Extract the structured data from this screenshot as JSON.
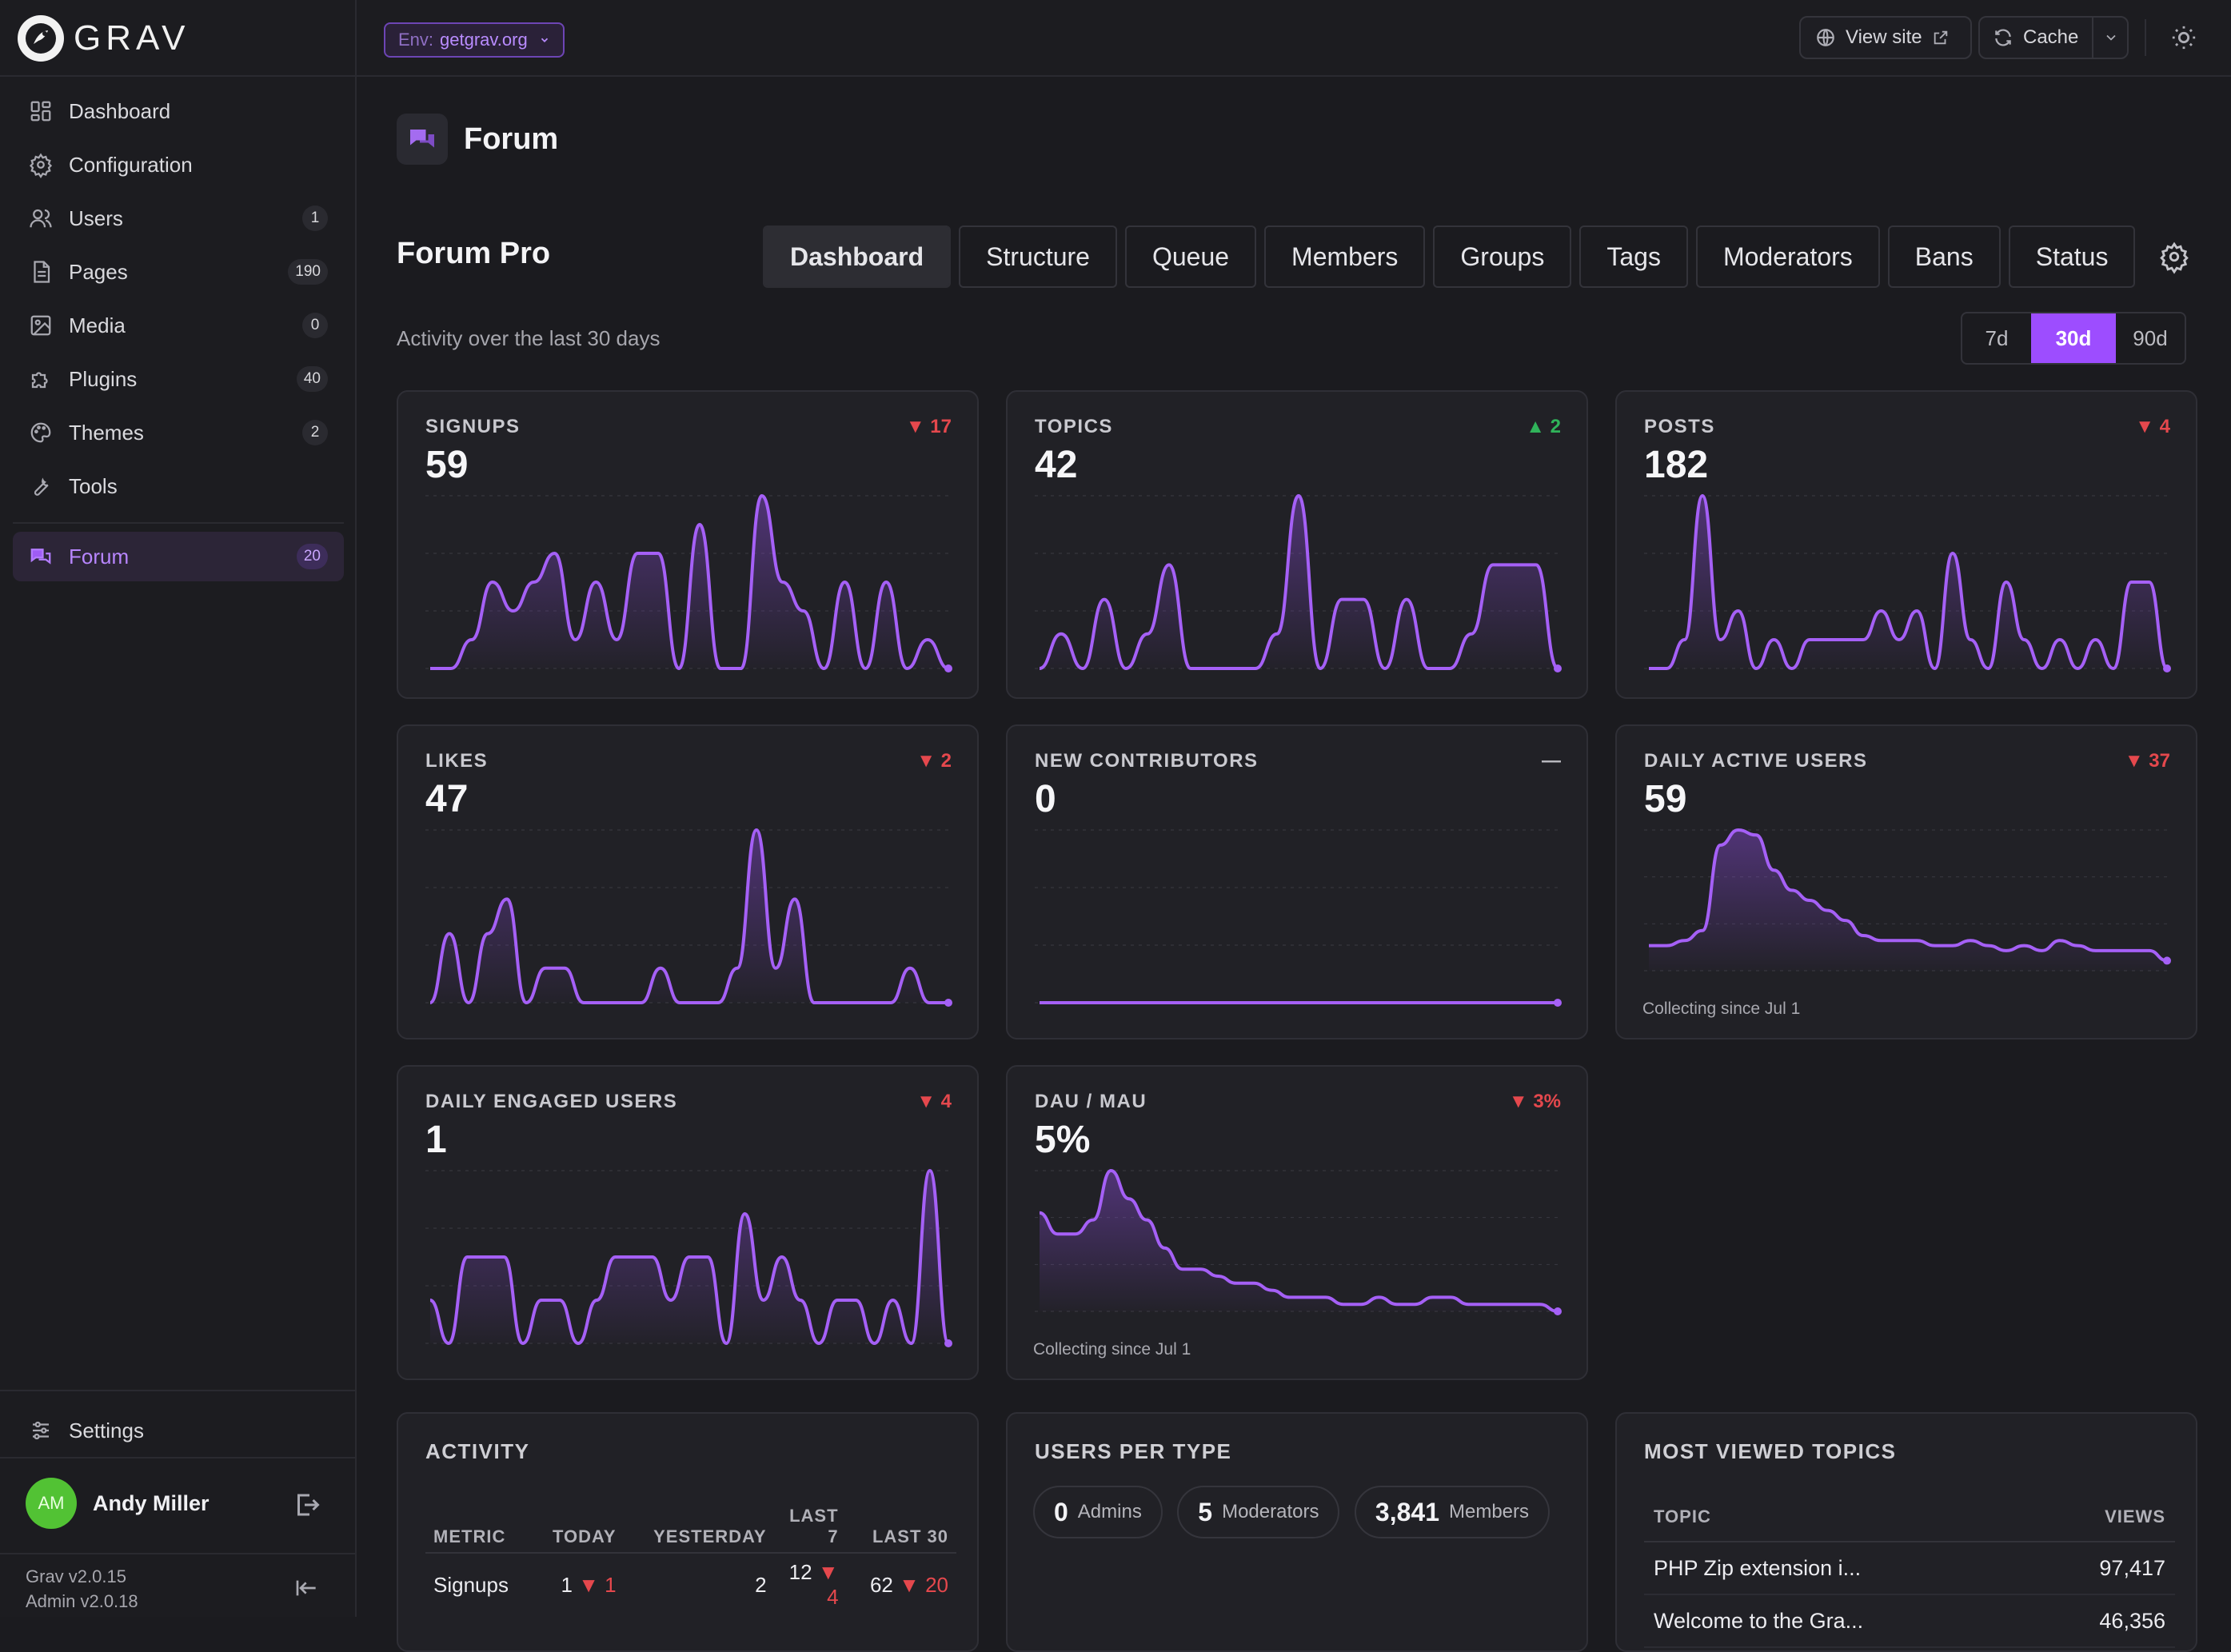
{
  "brand": {
    "name": "GRAV"
  },
  "sidebar": {
    "items": [
      {
        "label": "Dashboard",
        "icon": "dashboard-icon",
        "badge": ""
      },
      {
        "label": "Configuration",
        "icon": "gear-icon",
        "badge": ""
      },
      {
        "label": "Users",
        "icon": "users-icon",
        "badge": "1"
      },
      {
        "label": "Pages",
        "icon": "pages-icon",
        "badge": "190"
      },
      {
        "label": "Media",
        "icon": "media-icon",
        "badge": "0"
      },
      {
        "label": "Plugins",
        "icon": "puzzle-icon",
        "badge": "40"
      },
      {
        "label": "Themes",
        "icon": "palette-icon",
        "badge": "2"
      },
      {
        "label": "Tools",
        "icon": "wrench-icon",
        "badge": ""
      }
    ],
    "active_item": {
      "label": "Forum",
      "icon": "forum-icon",
      "badge": "20"
    },
    "settings_label": "Settings",
    "user": {
      "initials": "AM",
      "name": "Andy Miller"
    },
    "version_line1": "Grav v2.0.15",
    "version_line2": "Admin v2.0.18"
  },
  "topbar": {
    "env_label": "Env:",
    "env_value": "getgrav.org",
    "view_site": "View site",
    "cache": "Cache"
  },
  "page": {
    "title": "Forum"
  },
  "forum": {
    "title": "Forum Pro",
    "tabs": [
      "Dashboard",
      "Structure",
      "Queue",
      "Members",
      "Groups",
      "Tags",
      "Moderators",
      "Bans",
      "Status"
    ],
    "active_tab": "Dashboard",
    "subtitle": "Activity over the last 30 days",
    "ranges": [
      "7d",
      "30d",
      "90d"
    ],
    "active_range": "30d"
  },
  "stats": [
    {
      "label": "SIGNUPS",
      "value": "59",
      "delta": "▼ 17",
      "trend": "down",
      "note": ""
    },
    {
      "label": "TOPICS",
      "value": "42",
      "delta": "▲ 2",
      "trend": "up",
      "note": ""
    },
    {
      "label": "POSTS",
      "value": "182",
      "delta": "▼ 4",
      "trend": "down",
      "note": ""
    },
    {
      "label": "LIKES",
      "value": "47",
      "delta": "▼ 2",
      "trend": "down",
      "note": ""
    },
    {
      "label": "NEW CONTRIBUTORS",
      "value": "0",
      "delta": "—",
      "trend": "flat",
      "note": ""
    },
    {
      "label": "DAILY ACTIVE USERS",
      "value": "59",
      "delta": "▼ 37",
      "trend": "down",
      "note": "Collecting since Jul 1"
    },
    {
      "label": "DAILY ENGAGED USERS",
      "value": "1",
      "delta": "▼ 4",
      "trend": "down",
      "note": ""
    },
    {
      "label": "DAU / MAU",
      "value": "5%",
      "delta": "▼ 3%",
      "trend": "down",
      "note": "Collecting since Jul 1"
    }
  ],
  "activity": {
    "title": "ACTIVITY",
    "headers": [
      "METRIC",
      "TODAY",
      "YESTERDAY",
      "LAST 7",
      "LAST 30"
    ],
    "rows": [
      {
        "metric": "Signups",
        "today": "1",
        "today_delta": "▼ 1",
        "yesterday": "2",
        "last7": "12",
        "last7_delta": "▼ 4",
        "last30": "62",
        "last30_delta": "▼ 20"
      }
    ]
  },
  "users_per_type": {
    "title": "USERS PER TYPE",
    "chips": [
      {
        "count": "0",
        "label": "Admins"
      },
      {
        "count": "5",
        "label": "Moderators"
      },
      {
        "count": "3,841",
        "label": "Members"
      }
    ]
  },
  "most_viewed": {
    "title": "MOST VIEWED TOPICS",
    "headers": [
      "TOPIC",
      "VIEWS"
    ],
    "rows": [
      {
        "topic": "PHP Zip extension i...",
        "views": "97,417"
      },
      {
        "topic": "Welcome to the Gra...",
        "views": "46,356"
      }
    ]
  },
  "colors": {
    "accent": "#9d4dff",
    "down": "#e5484d",
    "up": "#30b35a",
    "line": "#a560f6"
  },
  "chart_data": [
    {
      "type": "area",
      "title": "SIGNUPS",
      "values": [
        0,
        0,
        1,
        3,
        2,
        3,
        4,
        1,
        3,
        1,
        4,
        4,
        0,
        5,
        0,
        0,
        6,
        3,
        2,
        0,
        3,
        0,
        3,
        0,
        1,
        0
      ]
    },
    {
      "type": "area",
      "title": "TOPICS",
      "values": [
        0,
        1,
        0,
        2,
        0,
        1,
        3,
        0,
        0,
        0,
        0,
        1,
        5,
        0,
        2,
        2,
        0,
        2,
        0,
        0,
        1,
        3,
        3,
        3,
        0
      ]
    },
    {
      "type": "area",
      "title": "POSTS",
      "values": [
        0,
        0,
        1,
        6,
        1,
        2,
        0,
        1,
        0,
        1,
        1,
        1,
        1,
        2,
        1,
        2,
        0,
        4,
        1,
        0,
        3,
        1,
        0,
        1,
        0,
        1,
        0,
        3,
        3,
        0
      ]
    },
    {
      "type": "area",
      "title": "LIKES",
      "values": [
        0,
        2,
        0,
        2,
        3,
        0,
        1,
        1,
        0,
        0,
        0,
        0,
        1,
        0,
        0,
        0,
        1,
        5,
        1,
        3,
        0,
        0,
        0,
        0,
        0,
        1,
        0,
        0
      ]
    },
    {
      "type": "line",
      "title": "NEW CONTRIBUTORS",
      "values": [
        0,
        0,
        0,
        0,
        0,
        0,
        0,
        0,
        0,
        0,
        0,
        0,
        0,
        0,
        0,
        0,
        0,
        0,
        0,
        0,
        0,
        0,
        0,
        0,
        0,
        0,
        0,
        0,
        0,
        0
      ]
    },
    {
      "type": "area",
      "title": "DAILY ACTIVE USERS",
      "values": [
        5,
        5,
        6,
        8,
        25,
        28,
        27,
        20,
        16,
        14,
        12,
        10,
        7,
        6,
        6,
        6,
        5,
        5,
        6,
        5,
        4,
        5,
        4,
        6,
        5,
        4,
        4,
        4,
        4,
        2
      ]
    },
    {
      "type": "area",
      "title": "DAILY ENGAGED USERS",
      "values": [
        1,
        0,
        2,
        2,
        2,
        0,
        1,
        1,
        0,
        1,
        2,
        2,
        2,
        1,
        2,
        2,
        0,
        3,
        1,
        2,
        1,
        0,
        1,
        1,
        0,
        1,
        0,
        4,
        0
      ]
    },
    {
      "type": "area",
      "title": "DAU / MAU",
      "values": [
        14,
        11,
        11,
        13,
        20,
        16,
        13,
        9,
        6,
        6,
        5,
        4,
        4,
        3,
        2,
        2,
        2,
        1,
        1,
        2,
        1,
        1,
        2,
        2,
        1,
        1,
        1,
        1,
        1,
        0
      ]
    }
  ]
}
